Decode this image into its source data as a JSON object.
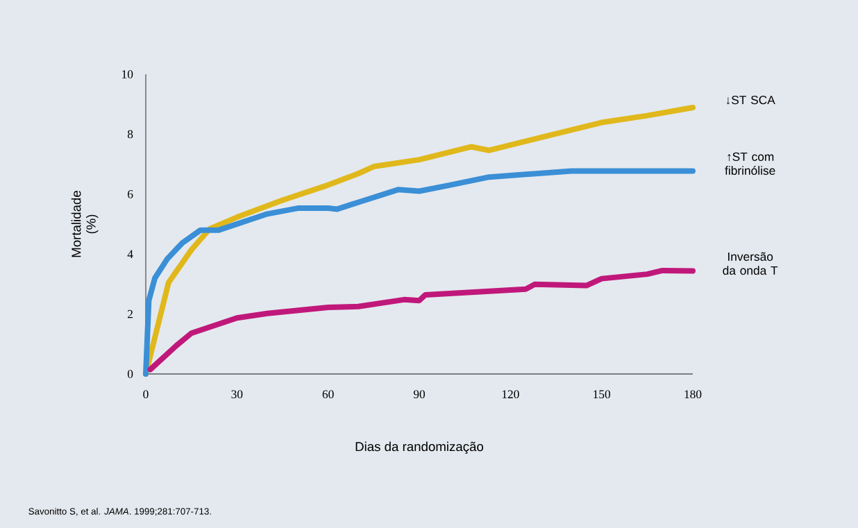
{
  "chart_data": {
    "type": "line",
    "xlabel": "Dias da randomização",
    "ylabel": "Mortalidade (%)",
    "xlim": [
      0,
      180
    ],
    "xticks": [
      0,
      30,
      60,
      90,
      120,
      150,
      180
    ],
    "ylim": [
      0,
      10
    ],
    "yticks": [
      0,
      2,
      4,
      6,
      8,
      10
    ],
    "series": [
      {
        "name": "↓ST  SCA",
        "color": "#e0b81c",
        "x": [
          0,
          7.5,
          15,
          21,
          30,
          45,
          59,
          70,
          75,
          90,
          107,
          113,
          130,
          150,
          165,
          180
        ],
        "values": [
          0,
          3.05,
          4.14,
          4.84,
          5.23,
          5.8,
          6.27,
          6.69,
          6.92,
          7.15,
          7.58,
          7.46,
          7.89,
          8.39,
          8.62,
          8.89
        ]
      },
      {
        "name": "↑ST com fibrinólise",
        "color": "#3a8fd6",
        "x": [
          0,
          1,
          3,
          7,
          12,
          18,
          24,
          40,
          50,
          60,
          63,
          70,
          83,
          90,
          100,
          113,
          140,
          180
        ],
        "values": [
          0,
          2.45,
          3.2,
          3.83,
          4.37,
          4.8,
          4.8,
          5.34,
          5.53,
          5.53,
          5.5,
          5.73,
          6.15,
          6.1,
          6.3,
          6.57,
          6.77,
          6.77
        ]
      },
      {
        "name": "Inversão da onda T",
        "color": "#c0187a",
        "x": [
          1.5,
          10,
          15,
          30,
          40,
          60,
          70,
          85,
          90,
          92,
          125,
          128,
          145,
          150,
          165,
          170,
          180
        ],
        "values": [
          0.15,
          0.94,
          1.36,
          1.87,
          2.02,
          2.22,
          2.25,
          2.48,
          2.45,
          2.64,
          2.83,
          2.99,
          2.95,
          3.18,
          3.33,
          3.45,
          3.44
        ]
      }
    ],
    "annotations": [
      "Savonitto S, et al. *JAMA*. 1999;281:707-713."
    ]
  }
}
